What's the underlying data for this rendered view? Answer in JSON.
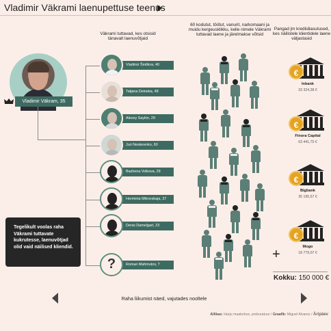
{
  "title": "Vladimir Väkrami laenupettuse teenus",
  "headers": {
    "acquaintances": "Väkrami tuttavad, kes otsisid tänavalt laenuvõtjaid",
    "crowd": "60 kodutut, töötut, vanurit, narkomaani ja muidu kergeusklikku, kelle nimele Väkrami tuttavad laene ja järelmakse võtsid",
    "banks": "Pangad jm krediidiasutused, kes näilistele klientidele laene väljastasid"
  },
  "main_person": {
    "name": "Vladimir Väkram, 35"
  },
  "people": [
    {
      "name": "Vladimir Šmõkov, 40",
      "avatar": "photo"
    },
    {
      "name": "Tatjana Deineka, 48",
      "avatar": "photo"
    },
    {
      "name": "Alexey Saykin, 29",
      "avatar": "photo"
    },
    {
      "name": "Juri Nesterenko, 60",
      "avatar": "photo"
    },
    {
      "name": "Bazhena Volkova, 29",
      "avatar": "woman-icon"
    },
    {
      "name": "Herminia Mitrovskaja, 37",
      "avatar": "woman-icon"
    },
    {
      "name": "Denis Damelgart, 23",
      "avatar": "man-icon"
    },
    {
      "name": "Roman Mahmutov, ?",
      "avatar": "question-icon"
    }
  ],
  "note": "Tegelikult voolas raha Väkrami tuttavate kukrutesse, laenuvõtjad olid vaid näilised kliendid.",
  "banks": [
    {
      "name": "Inbank",
      "amount": "33 324,38 €"
    },
    {
      "name": "Finora Capital",
      "amount": "63 441,75 €"
    },
    {
      "name": "Bigbank",
      "amount": "35 195,57 €"
    },
    {
      "name": "Mogo",
      "amount": "18 779,07 €"
    }
  ],
  "coin_symbol": "€",
  "plus_symbol": "+",
  "total": {
    "label": "Kokku:",
    "value": "150 000 €"
  },
  "nav": {
    "text": "Raha liikumist näed, vajutades nooltele"
  },
  "footer": {
    "source_label": "Allikas:",
    "source": "Harju maakohus, prokuratuur",
    "sep": "/",
    "graphic_label": "Graafik:",
    "graphic": "Miguel Alvarez",
    "brand": "Äripäev"
  },
  "colors": {
    "accent": "#3e6b61",
    "background": "#fbeee8",
    "coin": "#e5a323"
  }
}
